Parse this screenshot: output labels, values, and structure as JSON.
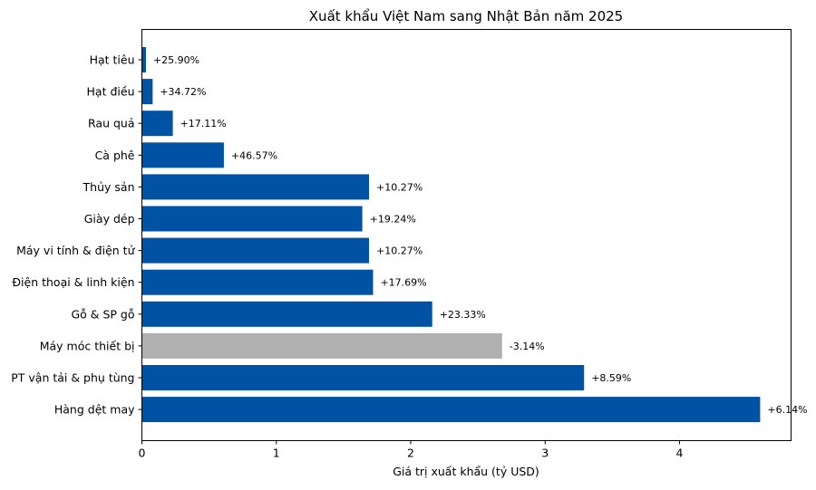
{
  "chart_data": {
    "type": "bar",
    "orientation": "horizontal",
    "title": "Xuất khẩu Việt Nam sang Nhật Bản năm 2025",
    "xlabel": "Giá trị xuất khẩu (tỷ USD)",
    "ylabel": "",
    "xlim": [
      0,
      4.83
    ],
    "xticks": [
      "0",
      "1",
      "2",
      "3",
      "4"
    ],
    "grid": false,
    "categories": [
      "Hạt tiêu",
      "Hạt điều",
      "Rau quả",
      "Cà phê",
      "Thủy sản",
      "Giày dép",
      "Máy vi tính & điện tử",
      "Điện thoại & linh kiện",
      "Gỗ & SP gỗ",
      "Máy móc thiết bị",
      "PT vận tải & phụ tùng",
      "Hàng dệt may"
    ],
    "values": [
      0.03,
      0.08,
      0.23,
      0.61,
      1.69,
      1.64,
      1.69,
      1.72,
      2.16,
      2.68,
      3.29,
      4.6
    ],
    "labels": [
      "+25.90%",
      "+34.72%",
      "+17.11%",
      "+46.57%",
      "+10.27%",
      "+19.24%",
      "+10.27%",
      "+17.69%",
      "+23.33%",
      "-3.14%",
      "+8.59%",
      "+6.14%"
    ],
    "colors": {
      "growth": "#0052a5",
      "decline": "#b0b0b0"
    }
  }
}
